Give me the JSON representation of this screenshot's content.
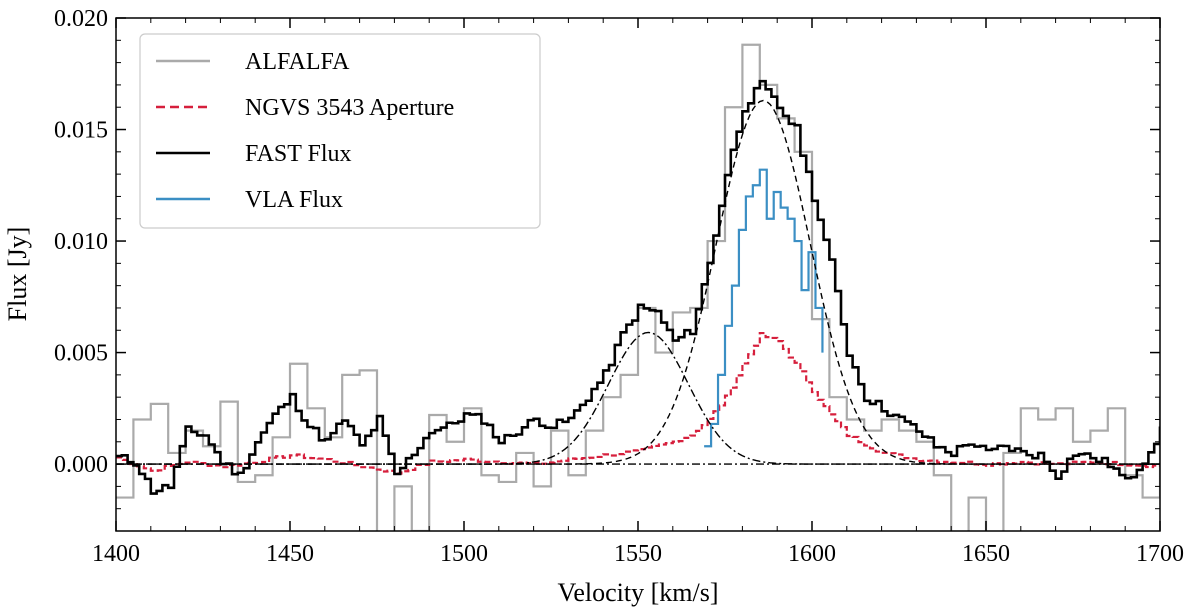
{
  "chart_data": {
    "type": "line",
    "title": "",
    "xlabel": "Velocity [km/s]",
    "ylabel": "Flux [Jy]",
    "xlim": [
      1400,
      1700
    ],
    "ylim": [
      -0.003,
      0.02
    ],
    "xticks": [
      1400,
      1450,
      1500,
      1550,
      1600,
      1650,
      1700
    ],
    "xtick_labels": [
      "1400",
      "1450",
      "1500",
      "1550",
      "1600",
      "1650",
      "1700"
    ],
    "yticks": [
      0.0,
      0.005,
      0.01,
      0.015,
      0.02
    ],
    "ytick_labels": [
      "0.000",
      "0.005",
      "0.010",
      "0.015",
      "0.020"
    ],
    "grid": false,
    "legend_position": "top-left",
    "series": [
      {
        "name": "ALFALFA",
        "style": "step",
        "color": "#aaaaaa",
        "x": [
          1400,
          1405,
          1410,
          1415,
          1420,
          1425,
          1430,
          1435,
          1440,
          1445,
          1450,
          1455,
          1460,
          1465,
          1470,
          1475,
          1480,
          1485,
          1490,
          1495,
          1500,
          1505,
          1510,
          1515,
          1520,
          1525,
          1530,
          1535,
          1540,
          1545,
          1550,
          1555,
          1560,
          1565,
          1570,
          1575,
          1580,
          1585,
          1590,
          1595,
          1600,
          1605,
          1610,
          1615,
          1620,
          1625,
          1630,
          1635,
          1640,
          1645,
          1650,
          1655,
          1660,
          1665,
          1670,
          1675,
          1680,
          1685,
          1690,
          1695,
          1700
        ],
        "values": [
          -0.0015,
          0.002,
          0.0027,
          0.0005,
          0.0015,
          0.0008,
          0.0028,
          -0.0008,
          -0.0005,
          0.0012,
          0.0045,
          0.0025,
          0.0012,
          0.004,
          0.0042,
          -0.0035,
          -0.001,
          -0.003,
          0.0022,
          0.001,
          0.0025,
          -0.0005,
          -0.0008,
          0.0005,
          -0.001,
          0.0015,
          -0.0005,
          0.0015,
          0.003,
          0.004,
          0.007,
          0.005,
          0.0068,
          0.007,
          0.01,
          0.016,
          0.0188,
          0.017,
          0.0155,
          0.014,
          0.0065,
          0.003,
          0.002,
          0.0015,
          0.002,
          0.0015,
          0.001,
          -0.0005,
          -0.004,
          -0.0015,
          -0.0035,
          0.0005,
          0.0025,
          0.002,
          0.0025,
          0.001,
          0.0015,
          0.0025,
          -0.0005,
          -0.0015,
          0.003
        ]
      },
      {
        "name": "NGVS 3543 Aperture",
        "style": "dashed-step",
        "color": "#d61f3c",
        "values_by_velocity": [
          [
            1400,
            0.0003
          ],
          [
            1410,
            -0.0003
          ],
          [
            1420,
            0.0001
          ],
          [
            1430,
            -0.0001
          ],
          [
            1440,
            0.0001
          ],
          [
            1450,
            0.0004
          ],
          [
            1460,
            0.0002
          ],
          [
            1470,
            -0.0001
          ],
          [
            1480,
            -0.0004
          ],
          [
            1490,
            0.0001
          ],
          [
            1500,
            0.0002
          ],
          [
            1510,
            0.0001
          ],
          [
            1520,
            0.0
          ],
          [
            1530,
            0.0002
          ],
          [
            1540,
            0.0004
          ],
          [
            1550,
            0.0006
          ],
          [
            1560,
            0.001
          ],
          [
            1565,
            0.0013
          ],
          [
            1570,
            0.002
          ],
          [
            1575,
            0.003
          ],
          [
            1580,
            0.0045
          ],
          [
            1585,
            0.0058
          ],
          [
            1590,
            0.0055
          ],
          [
            1595,
            0.0045
          ],
          [
            1600,
            0.0033
          ],
          [
            1605,
            0.0022
          ],
          [
            1610,
            0.0013
          ],
          [
            1615,
            0.0009
          ],
          [
            1620,
            0.0005
          ],
          [
            1630,
            0.0002
          ],
          [
            1640,
            0.0001
          ],
          [
            1650,
            0.0
          ],
          [
            1660,
            0.0001
          ],
          [
            1670,
            0.0
          ],
          [
            1680,
            0.0001
          ],
          [
            1690,
            0.0
          ],
          [
            1700,
            -0.0001
          ]
        ]
      },
      {
        "name": "FAST Flux",
        "style": "step",
        "color": "#000000",
        "values_by_velocity": [
          [
            1400,
            0.0003
          ],
          [
            1405,
            0.0001
          ],
          [
            1410,
            -0.0012
          ],
          [
            1415,
            -0.001
          ],
          [
            1420,
            0.0015
          ],
          [
            1425,
            0.0013
          ],
          [
            1430,
            0.0001
          ],
          [
            1435,
            -0.0005
          ],
          [
            1440,
            0.001
          ],
          [
            1445,
            0.0022
          ],
          [
            1450,
            0.003
          ],
          [
            1455,
            0.0017
          ],
          [
            1460,
            0.001
          ],
          [
            1465,
            0.002
          ],
          [
            1470,
            0.0008
          ],
          [
            1475,
            0.002
          ],
          [
            1480,
            -0.0005
          ],
          [
            1485,
            0.0005
          ],
          [
            1490,
            0.0015
          ],
          [
            1495,
            0.0017
          ],
          [
            1500,
            0.0022
          ],
          [
            1505,
            0.002
          ],
          [
            1510,
            0.001
          ],
          [
            1515,
            0.0015
          ],
          [
            1520,
            0.002
          ],
          [
            1525,
            0.0017
          ],
          [
            1530,
            0.002
          ],
          [
            1535,
            0.003
          ],
          [
            1540,
            0.004
          ],
          [
            1545,
            0.0058
          ],
          [
            1550,
            0.007
          ],
          [
            1555,
            0.0068
          ],
          [
            1560,
            0.0055
          ],
          [
            1565,
            0.006
          ],
          [
            1570,
            0.009
          ],
          [
            1575,
            0.013
          ],
          [
            1580,
            0.016
          ],
          [
            1585,
            0.017
          ],
          [
            1590,
            0.016
          ],
          [
            1595,
            0.015
          ],
          [
            1600,
            0.012
          ],
          [
            1605,
            0.009
          ],
          [
            1610,
            0.005
          ],
          [
            1615,
            0.003
          ],
          [
            1620,
            0.0025
          ],
          [
            1625,
            0.002
          ],
          [
            1630,
            0.0015
          ],
          [
            1635,
            0.0008
          ],
          [
            1640,
            0.0005
          ],
          [
            1645,
            0.001
          ],
          [
            1650,
            0.0005
          ],
          [
            1655,
            0.0008
          ],
          [
            1660,
            0.0005
          ],
          [
            1665,
            0.0004
          ],
          [
            1670,
            -0.0005
          ],
          [
            1675,
            0.0005
          ],
          [
            1680,
            0.0003
          ],
          [
            1685,
            0.0
          ],
          [
            1690,
            -0.0008
          ],
          [
            1695,
            0.0002
          ],
          [
            1700,
            0.0015
          ]
        ]
      },
      {
        "name": "VLA Flux",
        "style": "step",
        "color": "#3b8fc4",
        "values_by_velocity": [
          [
            1569,
            0.0008
          ],
          [
            1571,
            0.0018
          ],
          [
            1573,
            0.004
          ],
          [
            1575,
            0.0062
          ],
          [
            1577,
            0.008
          ],
          [
            1579,
            0.0105
          ],
          [
            1581,
            0.012
          ],
          [
            1583,
            0.0125
          ],
          [
            1585,
            0.0132
          ],
          [
            1587,
            0.011
          ],
          [
            1589,
            0.0122
          ],
          [
            1591,
            0.0115
          ],
          [
            1593,
            0.011
          ],
          [
            1595,
            0.01
          ],
          [
            1597,
            0.0078
          ],
          [
            1599,
            0.0095
          ],
          [
            1601,
            0.007
          ],
          [
            1603,
            0.005
          ]
        ]
      },
      {
        "name": "Gaussian fit (main)",
        "style": "dashed",
        "color": "#000000",
        "gaussian": {
          "amplitude": 0.0163,
          "center": 1586,
          "sigma": 13.5
        }
      },
      {
        "name": "Gaussian fit (secondary)",
        "style": "dash-dot",
        "color": "#000000",
        "gaussian": {
          "amplitude": 0.0059,
          "center": 1553,
          "sigma": 11.5
        }
      }
    ],
    "reference_lines": [
      {
        "type": "horizontal",
        "y": 0.0,
        "style": "dash-dot",
        "color": "#000000"
      }
    ],
    "legend": [
      {
        "label": "ALFALFA",
        "color": "#aaaaaa",
        "dash": "solid"
      },
      {
        "label": "NGVS 3543 Aperture",
        "color": "#d61f3c",
        "dash": "dashed"
      },
      {
        "label": "FAST Flux",
        "color": "#000000",
        "dash": "solid"
      },
      {
        "label": "VLA Flux",
        "color": "#3b8fc4",
        "dash": "solid"
      }
    ]
  }
}
